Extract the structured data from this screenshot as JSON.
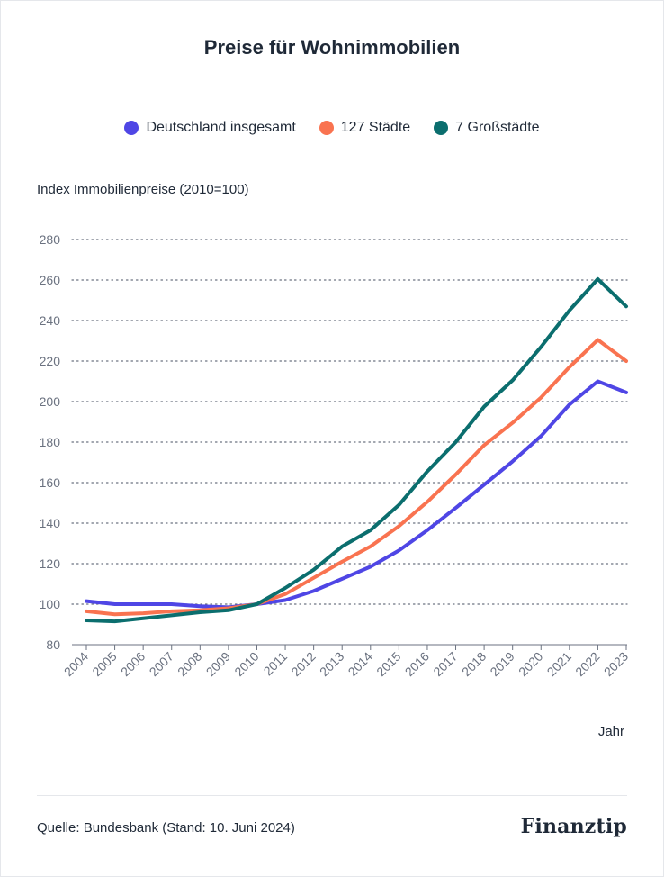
{
  "title": "Preise für Wohnimmobilien",
  "source": "Quelle: Bundesbank (Stand: 10. Juni 2024)",
  "brand": "Finanztip",
  "colors": {
    "Deutschland insgesamt": "#4f46e5",
    "127 Städte": "#f97350",
    "7 Großstädte": "#0b6e6e"
  },
  "chart_data": {
    "type": "line",
    "ylabel": "Index Immobilienpreise (2010=100)",
    "xlabel": "Jahr",
    "ylim": [
      80,
      280
    ],
    "yticks": [
      80,
      100,
      120,
      140,
      160,
      180,
      200,
      220,
      240,
      260,
      280
    ],
    "grid": "horizontal dotted",
    "legend": "top-center",
    "x": [
      "2004",
      "2005",
      "2006",
      "2007",
      "2008",
      "2009",
      "2010",
      "2011",
      "2012",
      "2013",
      "2014",
      "2015",
      "2016",
      "2017",
      "2018",
      "2019",
      "2020",
      "2021",
      "2022",
      "2023"
    ],
    "series": [
      {
        "name": "Deutschland insgesamt",
        "values": [
          101.5,
          100,
          100,
          100,
          99,
          98.5,
          100,
          102,
          106.5,
          112.5,
          118.5,
          126.5,
          136.5,
          147.5,
          159,
          170.5,
          183,
          198.5,
          210,
          204.5
        ]
      },
      {
        "name": "127 Städte",
        "values": [
          96.5,
          95,
          95.5,
          96.5,
          97,
          98,
          100,
          105,
          113,
          121,
          128.5,
          138.5,
          150.5,
          164,
          178.5,
          189.5,
          202,
          217,
          230.5,
          220
        ]
      },
      {
        "name": "7 Großstädte",
        "values": [
          92,
          91.5,
          93,
          94.5,
          96,
          97,
          100,
          108,
          117,
          128.5,
          136.5,
          149,
          165.5,
          180,
          197.5,
          210.5,
          227,
          245,
          260.5,
          247
        ]
      }
    ]
  }
}
